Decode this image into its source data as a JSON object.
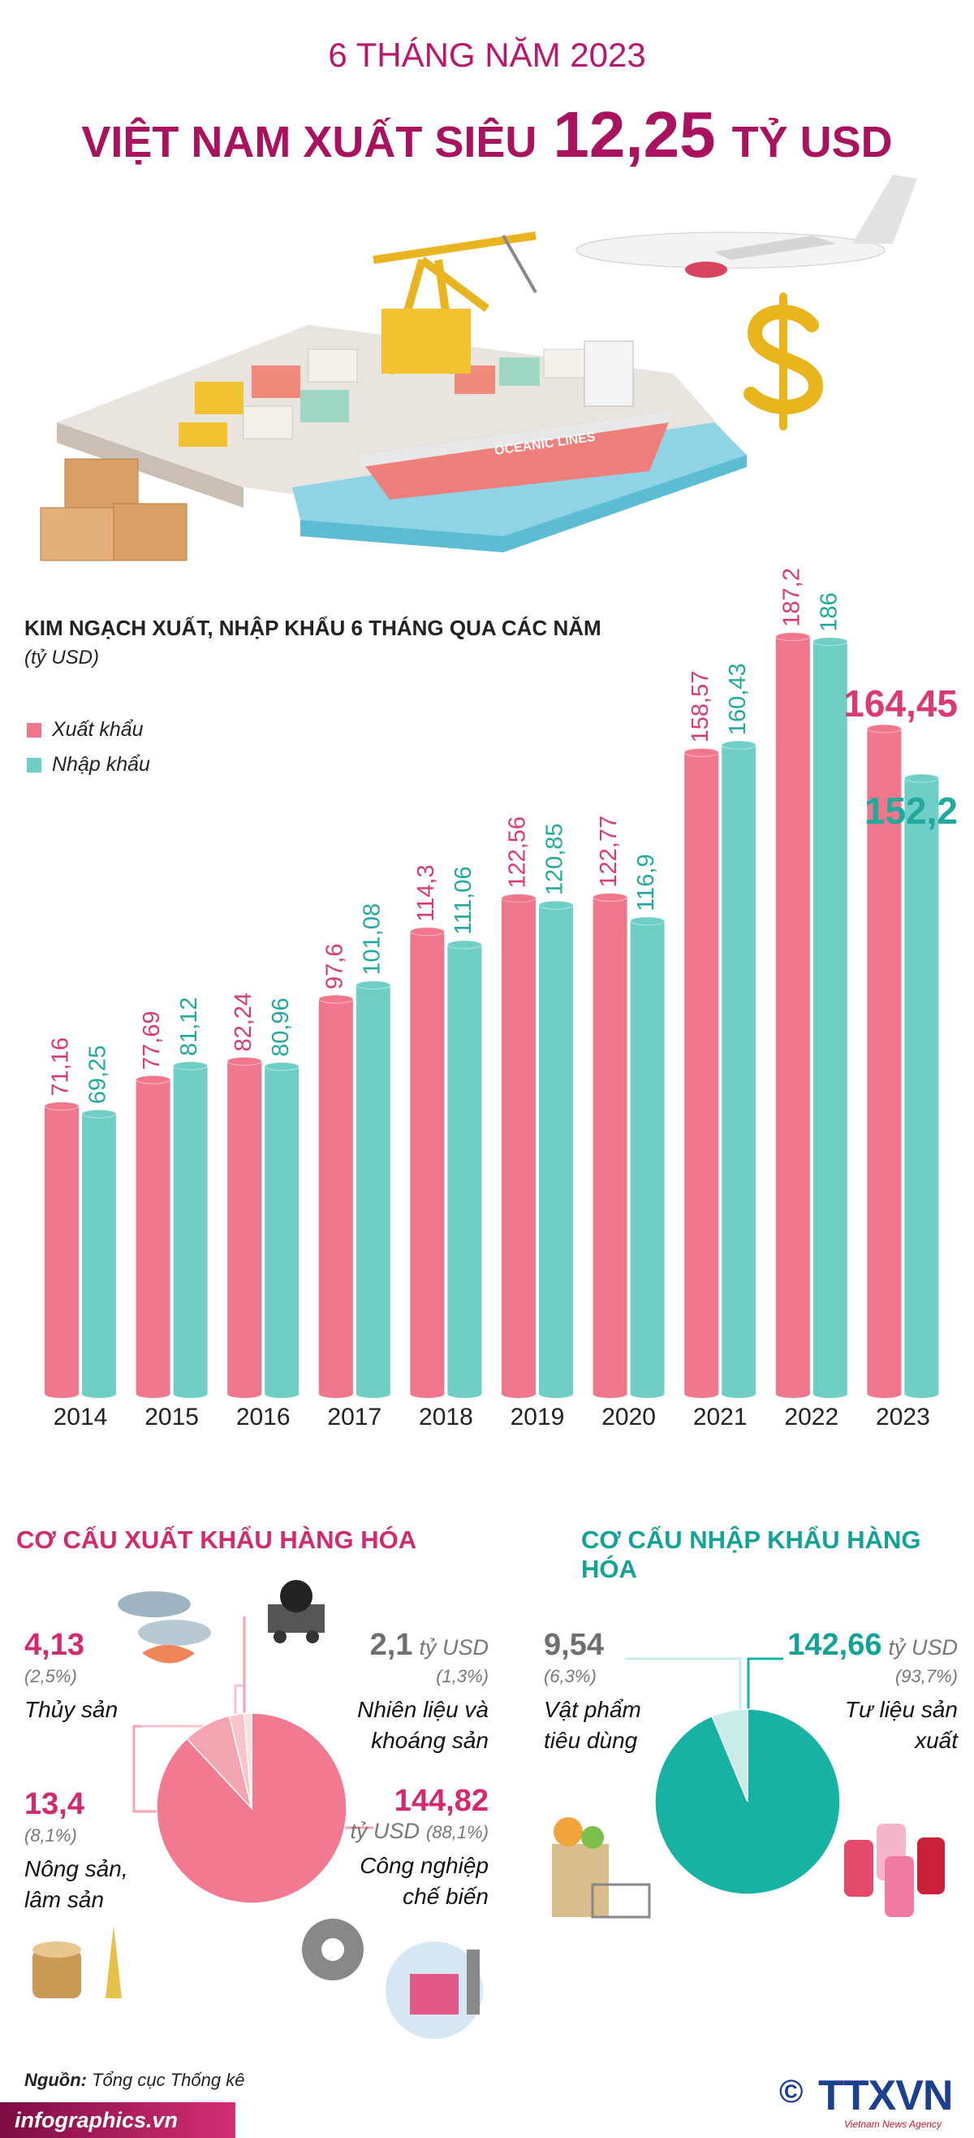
{
  "header": {
    "kicker": "6 THÁNG NĂM 2023",
    "title": "VIỆT NAM XUẤT SIÊU",
    "highlight": "12,25",
    "unit": "TỶ USD"
  },
  "illustration": {
    "ship_label": "OCEANIC LINES"
  },
  "chart_data": [
    {
      "type": "bar",
      "title": "KIM NGẠCH XUẤT, NHẬP KHẨU 6 THÁNG QUA CÁC NĂM",
      "subtitle": "(tỷ USD)",
      "legend": "top-left",
      "categories": [
        "2014",
        "2015",
        "2016",
        "2017",
        "2018",
        "2019",
        "2020",
        "2021",
        "2022",
        "2023"
      ],
      "series": [
        {
          "name": "Xuất khẩu",
          "color": "#f0768b",
          "label_color": "#d93a72",
          "values": [
            71.16,
            77.69,
            82.24,
            97.6,
            114.3,
            122.56,
            122.77,
            158.57,
            187.2,
            164.45
          ],
          "value_labels": [
            "71,16",
            "77,69",
            "82,24",
            "97,6",
            "114,3",
            "122,56",
            "122,77",
            "158,57",
            "187,2",
            "164,45"
          ]
        },
        {
          "name": "Nhập khẩu",
          "color": "#6fcfc7",
          "label_color": "#22a99e",
          "values": [
            69.25,
            81.12,
            80.96,
            101.08,
            111.06,
            120.85,
            116.9,
            160.43,
            186,
            152.2
          ],
          "value_labels": [
            "69,25",
            "81,12",
            "80,96",
            "101,08",
            "111,06",
            "120,85",
            "116,9",
            "160,43",
            "186",
            "152,2"
          ]
        }
      ]
    },
    {
      "type": "pie",
      "title": "CƠ CẤU XUẤT KHẨU HÀNG HÓA",
      "title_color": "#d12a6e",
      "unit": "tỷ USD",
      "categories": [
        "Công nghiệp chế biến",
        "Nông sản, lâm sản",
        "Thủy sản",
        "Nhiên liệu và khoáng sản"
      ],
      "values": [
        144.82,
        13.4,
        4.13,
        2.1
      ],
      "value_labels": [
        "144,82",
        "13,4",
        "4,13",
        "2,1"
      ],
      "percents": [
        88.1,
        8.1,
        2.5,
        1.3
      ],
      "percent_labels": [
        "(88,1%)",
        "(8,1%)",
        "(2,5%)",
        "(1,3%)"
      ],
      "colors": [
        "#f27a90",
        "#f4a3b0",
        "#f8c3cb",
        "#fcdfe3"
      ]
    },
    {
      "type": "pie",
      "title": "CƠ CẤU NHẬP KHẨU HÀNG HÓA",
      "title_color": "#13a396",
      "unit": "tỷ USD",
      "categories": [
        "Tư liệu sản xuất",
        "Vật phẩm tiêu dùng"
      ],
      "values": [
        142.66,
        9.54
      ],
      "value_labels": [
        "142,66",
        "9,54"
      ],
      "percents": [
        93.7,
        6.3
      ],
      "percent_labels": [
        "(93,7%)",
        "(6,3%)"
      ],
      "colors": [
        "#18b2a5",
        "#c9ece8"
      ]
    }
  ],
  "footer": {
    "source_label": "Nguồn:",
    "source": "Tổng cục Thống kê",
    "website": "infographics.vn",
    "copyright": "©",
    "agency": "TTXVN",
    "agency_sub": "Vietnam News Agency"
  }
}
